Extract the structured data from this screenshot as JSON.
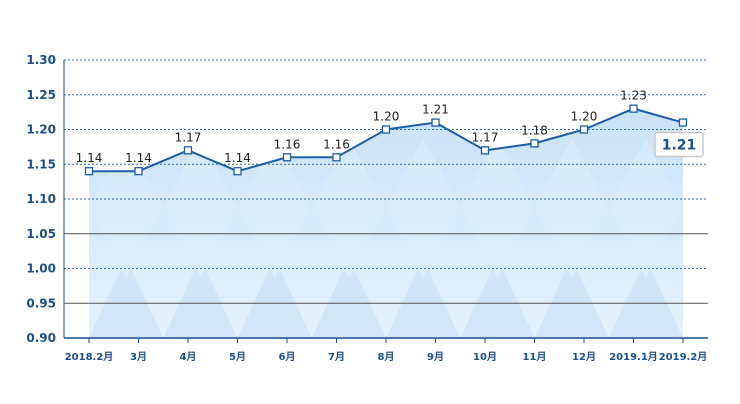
{
  "chart_data": {
    "type": "area",
    "categories": [
      "2018.2月",
      "3月",
      "4月",
      "5月",
      "6月",
      "7月",
      "8月",
      "9月",
      "10月",
      "11月",
      "12月",
      "2019.1月",
      "2019.2月"
    ],
    "series": [
      {
        "values": [
          1.14,
          1.14,
          1.17,
          1.14,
          1.16,
          1.16,
          1.2,
          1.21,
          1.17,
          1.18,
          1.2,
          1.23,
          1.21
        ]
      }
    ],
    "data_labels": [
      "1.14",
      "1.14",
      "1.17",
      "1.14",
      "1.16",
      "1.16",
      "1.20",
      "1.21",
      "1.17",
      "1.18",
      "1.20",
      "1.23",
      ""
    ],
    "last_value_callout": "1.21",
    "yticks": [
      "0.90",
      "0.95",
      "1.00",
      "1.05",
      "1.10",
      "1.15",
      "1.20",
      "1.25",
      "1.30"
    ],
    "ylim": [
      0.9,
      1.3
    ],
    "title": "",
    "xlabel": "",
    "ylabel": "",
    "grid": true,
    "legend": "none",
    "colors": {
      "line": "#1a5ea8",
      "marker_fill": "#ffffff",
      "area_light": "#dcedf9",
      "area_mid": "#c6ddf2",
      "grid_dotted": "#2b6cb0",
      "grid_solid": "#555555",
      "axis": "#1a4f8a"
    }
  }
}
